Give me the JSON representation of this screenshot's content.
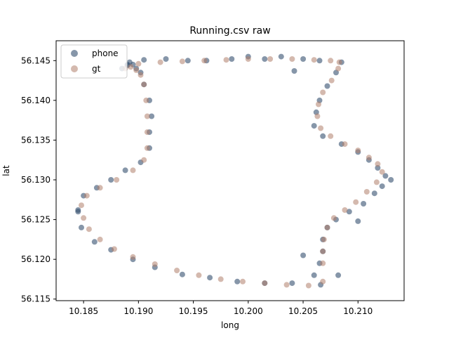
{
  "chart_data": {
    "type": "scatter",
    "title": "Running.csv raw",
    "xlabel": "long",
    "ylabel": "lat",
    "xlim": [
      10.1825,
      10.2142
    ],
    "ylim": [
      56.1148,
      56.1475
    ],
    "xticks": [
      10.185,
      10.19,
      10.195,
      10.2,
      10.205,
      10.21
    ],
    "xtick_labels": [
      "10.185",
      "10.190",
      "10.195",
      "10.200",
      "10.205",
      "10.210"
    ],
    "yticks": [
      56.115,
      56.12,
      56.125,
      56.13,
      56.135,
      56.14,
      56.145
    ],
    "ytick_labels": [
      "56.115",
      "56.120",
      "56.125",
      "56.130",
      "56.135",
      "56.140",
      "56.145"
    ],
    "grid": false,
    "legend_position": "top-left",
    "series": [
      {
        "name": "phone",
        "color": "#36506f",
        "alpha": 0.6,
        "x": [
          10.189,
          10.1905,
          10.1925,
          10.1945,
          10.1962,
          10.1985,
          10.2,
          10.2015,
          10.203,
          10.205,
          10.2065,
          10.2085,
          10.208,
          10.2072,
          10.2065,
          10.2062,
          10.206,
          10.2068,
          10.2085,
          10.21,
          10.211,
          10.2118,
          10.2125,
          10.2122,
          10.2115,
          10.2105,
          10.2092,
          10.208,
          10.2072,
          10.2068,
          10.2068,
          10.2065,
          10.206,
          10.204,
          10.2015,
          10.199,
          10.1965,
          10.194,
          10.1915,
          10.1895,
          10.1875,
          10.186,
          10.1848,
          10.1845,
          10.185,
          10.1862,
          10.1875,
          10.1888,
          10.1902,
          10.191,
          10.191,
          10.1912,
          10.191,
          10.1905,
          10.1902,
          10.1898,
          10.1895,
          10.1892,
          10.189,
          10.1885,
          10.21,
          10.213,
          10.1845,
          10.205,
          10.2082,
          10.2066,
          10.2042
        ],
        "y": [
          56.1445,
          56.1451,
          56.1452,
          56.145,
          56.145,
          56.1452,
          56.1455,
          56.1452,
          56.1455,
          56.1452,
          56.145,
          56.1448,
          56.1435,
          56.1418,
          56.14,
          56.1385,
          56.1368,
          56.1355,
          56.1345,
          56.1335,
          56.1325,
          56.1315,
          56.1305,
          56.1292,
          56.1283,
          56.127,
          56.126,
          56.125,
          56.124,
          56.1225,
          56.121,
          56.1195,
          56.118,
          56.117,
          56.117,
          56.1172,
          56.1177,
          56.1181,
          56.119,
          56.12,
          56.1212,
          56.1222,
          56.124,
          56.126,
          56.128,
          56.129,
          56.13,
          56.1312,
          56.1322,
          56.134,
          56.136,
          56.138,
          56.14,
          56.142,
          56.1435,
          56.144,
          56.1445,
          56.1448,
          56.1444,
          56.144,
          56.1248,
          56.13,
          56.1262,
          56.1205,
          56.118,
          56.1168,
          56.1437
        ]
      },
      {
        "name": "gt",
        "color": "#b07f6b",
        "alpha": 0.55,
        "x": [
          10.1888,
          10.19,
          10.192,
          10.194,
          10.196,
          10.198,
          10.2,
          10.202,
          10.204,
          10.206,
          10.2075,
          10.2083,
          10.2082,
          10.2076,
          10.2068,
          10.2064,
          10.2063,
          10.2066,
          10.2075,
          10.2088,
          10.21,
          10.211,
          10.2118,
          10.2122,
          10.2117,
          10.2108,
          10.2098,
          10.2088,
          10.2078,
          10.2072,
          10.2069,
          10.2068,
          10.2068,
          10.2068,
          10.2055,
          10.2035,
          10.2015,
          10.1995,
          10.1975,
          10.1955,
          10.1935,
          10.1915,
          10.1895,
          10.1878,
          10.1865,
          10.1855,
          10.185,
          10.1848,
          10.1853,
          10.1865,
          10.188,
          10.1895,
          10.1905,
          10.1908,
          10.1908,
          10.1908,
          10.1907,
          10.1905,
          10.1902,
          10.1898,
          10.1893
        ],
        "y": [
          56.144,
          56.1446,
          56.1448,
          56.1449,
          56.145,
          56.1451,
          56.1452,
          56.1452,
          56.1452,
          56.1451,
          56.145,
          56.1448,
          56.144,
          56.1425,
          56.141,
          56.1395,
          56.138,
          56.1365,
          56.1355,
          56.1345,
          56.1337,
          56.1328,
          56.132,
          56.131,
          56.1297,
          56.1285,
          56.1272,
          56.1262,
          56.1252,
          56.124,
          56.1225,
          56.121,
          56.1195,
          56.1172,
          56.1167,
          56.1168,
          56.117,
          56.1172,
          56.1175,
          56.118,
          56.1186,
          56.1194,
          56.1203,
          56.1213,
          56.1225,
          56.1238,
          56.1252,
          56.1268,
          56.128,
          56.129,
          56.13,
          56.1312,
          56.1325,
          56.134,
          56.136,
          56.138,
          56.14,
          56.142,
          56.1432,
          56.1438,
          56.1442
        ]
      }
    ]
  }
}
